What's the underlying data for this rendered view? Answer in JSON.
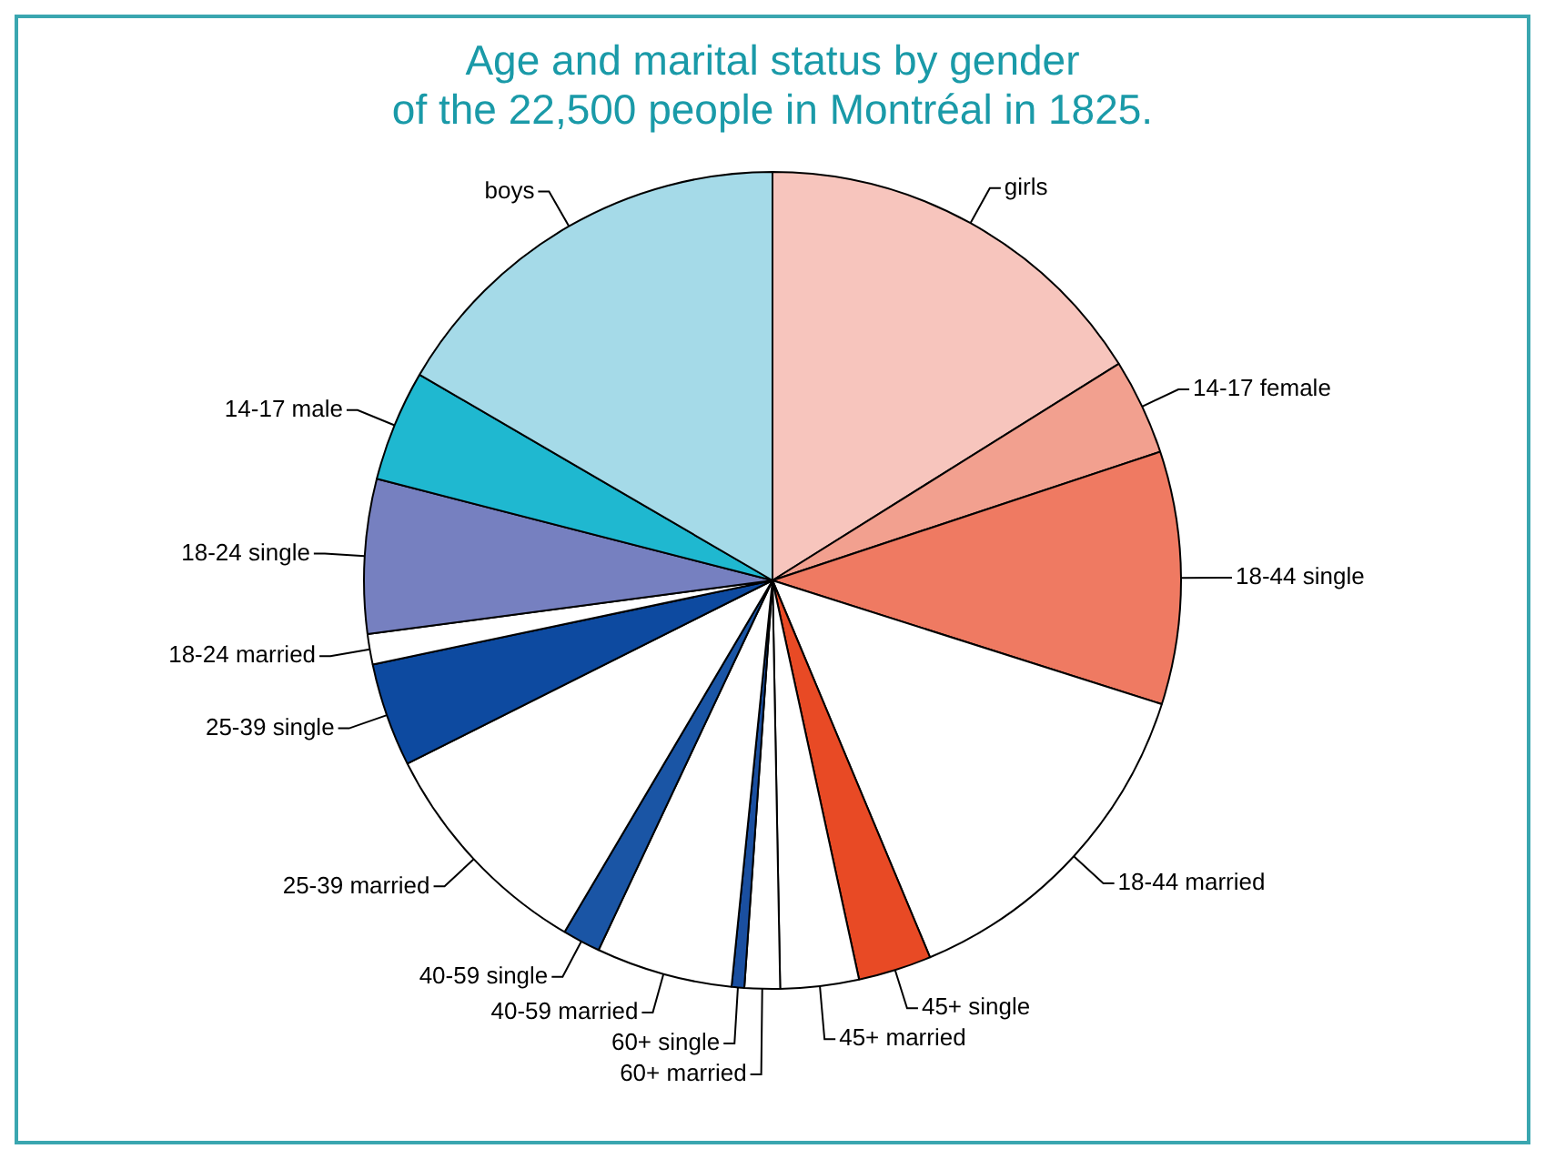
{
  "chart_data": {
    "type": "pie",
    "title": "Age and marital status by gender\nof the 22,500 people in Montréal in 1825.",
    "categories": [
      "girls",
      "14-17 female",
      "18-44 single",
      "18-44 married",
      "45+ single",
      "45+ married",
      "60+ married",
      "60+ single",
      "40-59 married",
      "40-59 single",
      "25-39 married",
      "25-39 single",
      "18-24 married",
      "18-24 single",
      "14-17 male",
      "boys"
    ],
    "values": [
      16.1,
      3.8,
      10.0,
      13.8,
      2.9,
      3.1,
      1.4,
      0.5,
      5.4,
      1.5,
      9.1,
      4.1,
      1.2,
      6.1,
      4.4,
      16.6
    ],
    "colors": [
      "#f7c5bd",
      "#f2a08f",
      "#ef7a62",
      "#ffffff",
      "#e84a25",
      "#ffffff",
      "#ffffff",
      "#1a4fa0",
      "#ffffff",
      "#1a55a5",
      "#ffffff",
      "#0d4aa0",
      "#ffffff",
      "#7680c0",
      "#1fb8d0",
      "#a5dae8"
    ],
    "legend": false
  }
}
